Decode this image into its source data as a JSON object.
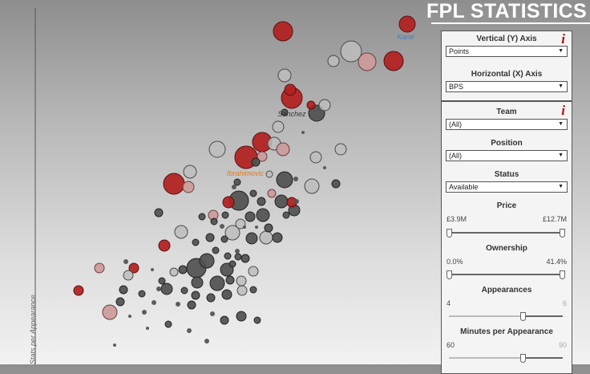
{
  "header": {
    "title": "FPL STATISTICS"
  },
  "axis_panel": {
    "vertical_label": "Vertical (Y) Axis",
    "vertical_value": "Points",
    "horizontal_label": "Horizontal (X) Axis",
    "horizontal_value": "BPS",
    "info_glyph": "i"
  },
  "filters": {
    "info_glyph": "i",
    "team": {
      "label": "Team",
      "value": "(All)"
    },
    "position": {
      "label": "Position",
      "value": "(All)"
    },
    "status": {
      "label": "Status",
      "value": "Available"
    },
    "price": {
      "label": "Price",
      "min_label": "£3.9M",
      "max_label": "£12.7M",
      "low": 0,
      "high": 1
    },
    "ownership": {
      "label": "Ownership",
      "min_label": "0.0%",
      "max_label": "41.4%",
      "low": 0,
      "high": 1
    },
    "appearances": {
      "label": "Appearances",
      "min_label": "4",
      "max_label": "6",
      "low": 0.65,
      "high": 1
    },
    "minutes": {
      "label": "Minutes per Appearance",
      "min_label": "60",
      "max_label": "90",
      "low": 0.65,
      "high": 1
    }
  },
  "chart_data": {
    "type": "scatter",
    "xlabel": "",
    "ylabel": "Stats per Appearance",
    "colors": {
      "red": "#b22020",
      "pink": "#cc9a9a",
      "light": "#bdbdbd",
      "dark": "#505050"
    },
    "annotations": [
      {
        "text": "Kane",
        "x": 506,
        "y": 49,
        "color": "#4a7cc0"
      },
      {
        "text": "Sánchez",
        "x": 364,
        "y": 145,
        "color": "#333333"
      },
      {
        "text": "Ibrahimovic",
        "x": 306,
        "y": 219,
        "color": "#e07a20"
      }
    ],
    "points": [
      [
        508,
        30,
        10,
        "red"
      ],
      [
        353,
        39,
        12,
        "red"
      ],
      [
        438,
        64,
        13,
        "light"
      ],
      [
        458,
        77,
        11,
        "pink"
      ],
      [
        491,
        76,
        12,
        "red"
      ],
      [
        416,
        76,
        7,
        "light"
      ],
      [
        355,
        94,
        8,
        "light"
      ],
      [
        364,
        122,
        13,
        "red"
      ],
      [
        362,
        112,
        7,
        "red"
      ],
      [
        395,
        141,
        10,
        "dark"
      ],
      [
        405,
        131,
        7,
        "light"
      ],
      [
        388,
        131,
        5,
        "red"
      ],
      [
        355,
        140,
        4,
        "dark"
      ],
      [
        347,
        158,
        7,
        "light"
      ],
      [
        327,
        177,
        12,
        "red"
      ],
      [
        342,
        179,
        8,
        "light"
      ],
      [
        353,
        186,
        8,
        "pink"
      ],
      [
        307,
        196,
        14,
        "red"
      ],
      [
        327,
        195,
        6,
        "pink"
      ],
      [
        271,
        186,
        10,
        "light"
      ],
      [
        319,
        202,
        5,
        "dark"
      ],
      [
        237,
        214,
        8,
        "light"
      ],
      [
        217,
        229,
        13,
        "red"
      ],
      [
        235,
        233,
        7,
        "pink"
      ],
      [
        296,
        227,
        4,
        "dark"
      ],
      [
        355,
        224,
        10,
        "dark"
      ],
      [
        339,
        241,
        5,
        "pink"
      ],
      [
        336,
        217,
        4,
        "light"
      ],
      [
        298,
        250,
        12,
        "dark"
      ],
      [
        285,
        252,
        7,
        "red"
      ],
      [
        316,
        241,
        4,
        "dark"
      ],
      [
        326,
        251,
        5,
        "dark"
      ],
      [
        351,
        251,
        8,
        "dark"
      ],
      [
        364,
        252,
        6,
        "red"
      ],
      [
        389,
        232,
        9,
        "light"
      ],
      [
        419,
        229,
        5,
        "dark"
      ],
      [
        425,
        186,
        7,
        "light"
      ],
      [
        394,
        196,
        7,
        "light"
      ],
      [
        367,
        262,
        7,
        "dark"
      ],
      [
        357,
        268,
        4,
        "dark"
      ],
      [
        328,
        268,
        8,
        "dark"
      ],
      [
        312,
        270,
        6,
        "dark"
      ],
      [
        281,
        268,
        4,
        "dark"
      ],
      [
        266,
        268,
        6,
        "pink"
      ],
      [
        267,
        276,
        4,
        "dark"
      ],
      [
        252,
        270,
        4,
        "dark"
      ],
      [
        198,
        265,
        5,
        "dark"
      ],
      [
        226,
        289,
        8,
        "light"
      ],
      [
        290,
        290,
        9,
        "light"
      ],
      [
        300,
        279,
        6,
        "light"
      ],
      [
        314,
        297,
        7,
        "dark"
      ],
      [
        332,
        296,
        8,
        "light"
      ],
      [
        346,
        296,
        6,
        "dark"
      ],
      [
        335,
        284,
        5,
        "dark"
      ],
      [
        280,
        298,
        4,
        "dark"
      ],
      [
        262,
        296,
        5,
        "dark"
      ],
      [
        244,
        302,
        4,
        "dark"
      ],
      [
        205,
        306,
        7,
        "red"
      ],
      [
        258,
        325,
        9,
        "dark"
      ],
      [
        245,
        334,
        12,
        "dark"
      ],
      [
        228,
        336,
        5,
        "dark"
      ],
      [
        246,
        352,
        7,
        "dark"
      ],
      [
        271,
        353,
        9,
        "dark"
      ],
      [
        283,
        336,
        8,
        "dark"
      ],
      [
        287,
        349,
        5,
        "dark"
      ],
      [
        301,
        350,
        6,
        "light"
      ],
      [
        306,
        322,
        5,
        "dark"
      ],
      [
        297,
        320,
        4,
        "dark"
      ],
      [
        290,
        329,
        4,
        "dark"
      ],
      [
        316,
        338,
        6,
        "light"
      ],
      [
        284,
        319,
        4,
        "dark"
      ],
      [
        269,
        312,
        4,
        "dark"
      ],
      [
        208,
        360,
        7,
        "dark"
      ],
      [
        202,
        350,
        4,
        "dark"
      ],
      [
        217,
        339,
        5,
        "light"
      ],
      [
        167,
        334,
        6,
        "red"
      ],
      [
        160,
        343,
        6,
        "light"
      ],
      [
        154,
        361,
        5,
        "dark"
      ],
      [
        124,
        334,
        6,
        "pink"
      ],
      [
        98,
        362,
        6,
        "red"
      ],
      [
        150,
        376,
        5,
        "dark"
      ],
      [
        137,
        389,
        9,
        "pink"
      ],
      [
        177,
        366,
        4,
        "dark"
      ],
      [
        198,
        360,
        3,
        "dark"
      ],
      [
        230,
        362,
        4,
        "dark"
      ],
      [
        244,
        368,
        5,
        "dark"
      ],
      [
        263,
        371,
        5,
        "dark"
      ],
      [
        283,
        367,
        6,
        "dark"
      ],
      [
        302,
        362,
        6,
        "light"
      ],
      [
        316,
        361,
        4,
        "dark"
      ],
      [
        239,
        380,
        5,
        "dark"
      ],
      [
        192,
        377,
        3,
        "dark"
      ],
      [
        180,
        389,
        3,
        "dark"
      ],
      [
        222,
        379,
        3,
        "dark"
      ],
      [
        265,
        391,
        3,
        "dark"
      ],
      [
        280,
        399,
        5,
        "dark"
      ],
      [
        301,
        394,
        6,
        "dark"
      ],
      [
        321,
        399,
        4,
        "dark"
      ],
      [
        210,
        404,
        4,
        "dark"
      ],
      [
        236,
        412,
        3,
        "dark"
      ],
      [
        258,
        425,
        3,
        "dark"
      ],
      [
        184,
        409,
        2,
        "dark"
      ],
      [
        162,
        394,
        2,
        "dark"
      ],
      [
        143,
        430,
        2,
        "dark"
      ],
      [
        157,
        326,
        3,
        "dark"
      ],
      [
        190,
        336,
        2,
        "dark"
      ],
      [
        296,
        313,
        3,
        "dark"
      ],
      [
        277,
        282,
        3,
        "dark"
      ],
      [
        305,
        283,
        2,
        "dark"
      ],
      [
        320,
        283,
        2,
        "dark"
      ],
      [
        292,
        233,
        3,
        "dark"
      ],
      [
        369,
        223,
        3,
        "dark"
      ],
      [
        405,
        209,
        2,
        "dark"
      ],
      [
        378,
        165,
        2,
        "dark"
      ],
      [
        370,
        251,
        3,
        "dark"
      ]
    ]
  }
}
